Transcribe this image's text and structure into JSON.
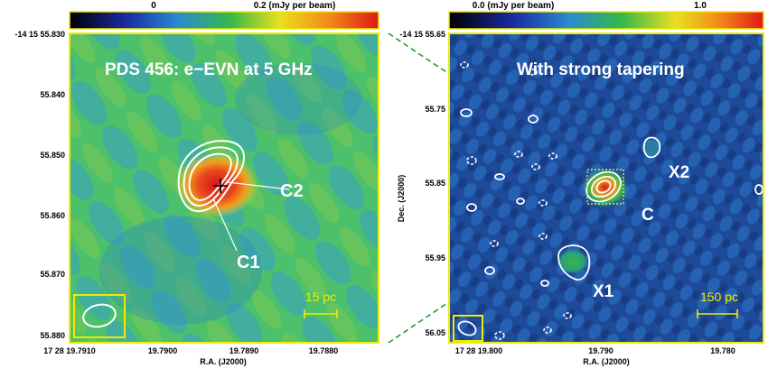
{
  "left_panel": {
    "colorbar_ticks": [
      "0",
      "0.2 (mJy per beam)"
    ],
    "title": "PDS 456: e−EVN at 5 GHz",
    "dec_ticks": [
      "-14 15 55.830",
      "55.840",
      "55.850",
      "55.860",
      "55.870",
      "55.880"
    ],
    "ra_ticks": [
      "17 28 19.7910",
      "19.7900",
      "19.7890",
      "19.7880"
    ],
    "ra_label": "R.A. (J2000)",
    "labels": {
      "c1": "C1",
      "c2": "C2"
    },
    "scalebar": "15 pc"
  },
  "right_panel": {
    "colorbar_ticks": [
      "0.0 (mJy per beam)",
      "1.0"
    ],
    "title": "With strong tapering",
    "dec_ticks": [
      "-14 15 55.65",
      "55.75",
      "55.85",
      "55.95",
      "56.05"
    ],
    "dec_label": "Dec. (J2000)",
    "ra_ticks": [
      "17 28 19.800",
      "19.790",
      "19.780"
    ],
    "ra_label": "R.A. (J2000)",
    "labels": {
      "x1": "X1",
      "x2": "X2",
      "c": "C"
    },
    "scalebar": "150 pc"
  },
  "colors": {
    "frame": "#f2ea00",
    "contour": "#ffffff",
    "connector": "#2a9a2a"
  }
}
